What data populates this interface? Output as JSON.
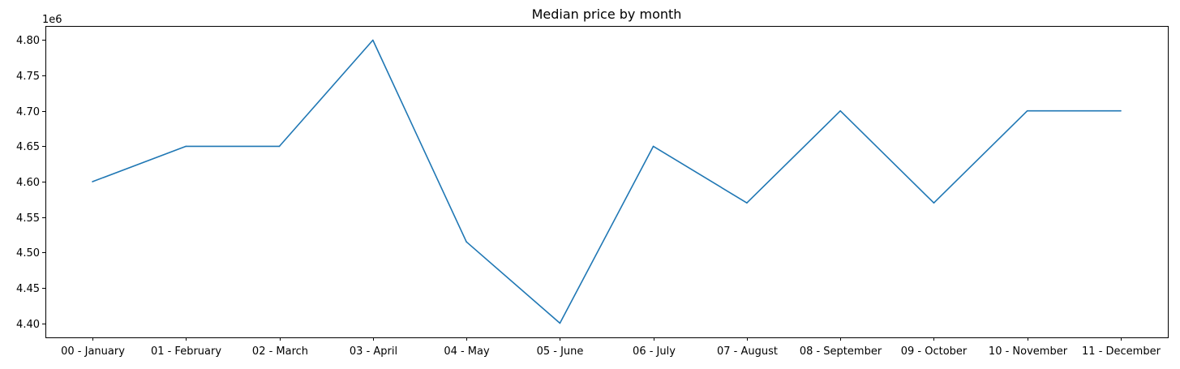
{
  "chart_data": {
    "type": "line",
    "title": "Median price by month",
    "xlabel": "",
    "ylabel": "",
    "y_offset_label": "1e6",
    "y_scale_factor": 1000000,
    "categories": [
      "00 - January",
      "01 - February",
      "02 - March",
      "03 - April",
      "04 - May",
      "05 - June",
      "06 - July",
      "07 - August",
      "08 - September",
      "09 - October",
      "10 - November",
      "11 - December"
    ],
    "series": [
      {
        "values": [
          4600000,
          4650000,
          4650000,
          4800000,
          4515000,
          4400000,
          4650000,
          4570000,
          4700000,
          4570000,
          4700000,
          4700000
        ],
        "color": "#1f77b4"
      }
    ],
    "ylim": [
      4380000,
      4820000
    ],
    "yticks": [
      4400000,
      4450000,
      4500000,
      4550000,
      4600000,
      4650000,
      4700000,
      4750000,
      4800000
    ],
    "ytick_labels": [
      "4.40",
      "4.45",
      "4.50",
      "4.55",
      "4.60",
      "4.65",
      "4.70",
      "4.75",
      "4.80"
    ],
    "grid": false,
    "legend": false
  }
}
